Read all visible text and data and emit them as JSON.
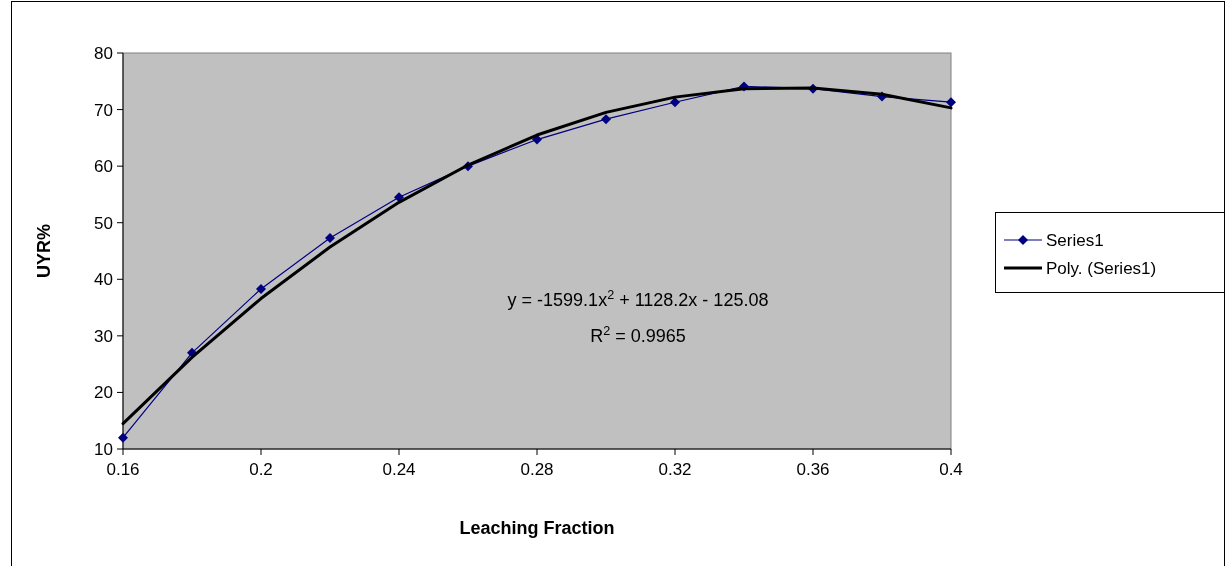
{
  "chart_data": {
    "type": "line",
    "xlabel": "Leaching Fraction",
    "ylabel": "UYR%",
    "xlim": [
      0.16,
      0.4
    ],
    "ylim": [
      10,
      80
    ],
    "xticks": [
      0.16,
      0.2,
      0.24,
      0.28,
      0.32,
      0.36,
      0.4
    ],
    "yticks": [
      10,
      20,
      30,
      40,
      50,
      60,
      70,
      80
    ],
    "grid": false,
    "legend": "right",
    "series": [
      {
        "name": "Series1",
        "color": "#000080",
        "marker": "diamond",
        "x": [
          0.16,
          0.18,
          0.2,
          0.22,
          0.24,
          0.26,
          0.28,
          0.3,
          0.32,
          0.34,
          0.36,
          0.38,
          0.4
        ],
        "values": [
          12,
          27,
          38.3,
          47.3,
          54.5,
          60,
          64.7,
          68.3,
          71.3,
          74.1,
          73.7,
          72.3,
          71.3
        ]
      },
      {
        "name": "Poly. (Series1)",
        "color": "#000000",
        "marker": "none",
        "x": [
          0.16,
          0.18,
          0.2,
          0.22,
          0.24,
          0.26,
          0.28,
          0.3,
          0.32,
          0.34,
          0.36,
          0.38,
          0.4
        ],
        "values": [
          14.5,
          26.2,
          36.6,
          45.7,
          53.6,
          60.2,
          65.5,
          69.5,
          72.2,
          73.7,
          73.8,
          72.7,
          70.3
        ]
      }
    ],
    "annotations": [
      "y = -1599.1x$^{2}$ + 1128.2x - 125.08",
      "R$^{2}$ = 0.9965"
    ]
  }
}
